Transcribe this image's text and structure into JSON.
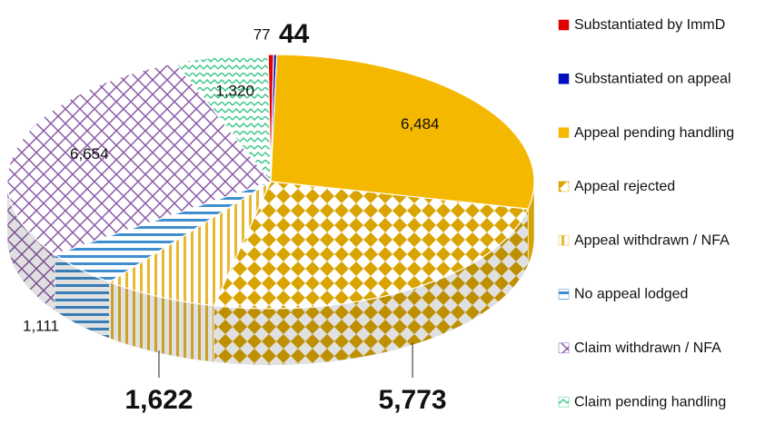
{
  "chart_data": {
    "type": "pie",
    "categories": [
      "Substantiated by ImmD",
      "Substantiated on appeal",
      "Appeal pending handling",
      "Appeal rejected",
      "Appeal withdrawn / NFA",
      "No appeal lodged",
      "Claim withdrawn / NFA",
      "Claim pending handling"
    ],
    "values": [
      77,
      44,
      6484,
      5773,
      1622,
      1111,
      6654,
      1320
    ],
    "value_labels": [
      "77",
      "44",
      "6,484",
      "5,773",
      "1,622",
      "1,111",
      "6,654",
      "1,320"
    ],
    "colors": [
      "#e00000",
      "#0010c0",
      "#f5b800",
      "#d9a400",
      "#e8b830",
      "#3f8fd0",
      "#8a5aa8",
      "#3cc88c"
    ],
    "legend": "right"
  }
}
